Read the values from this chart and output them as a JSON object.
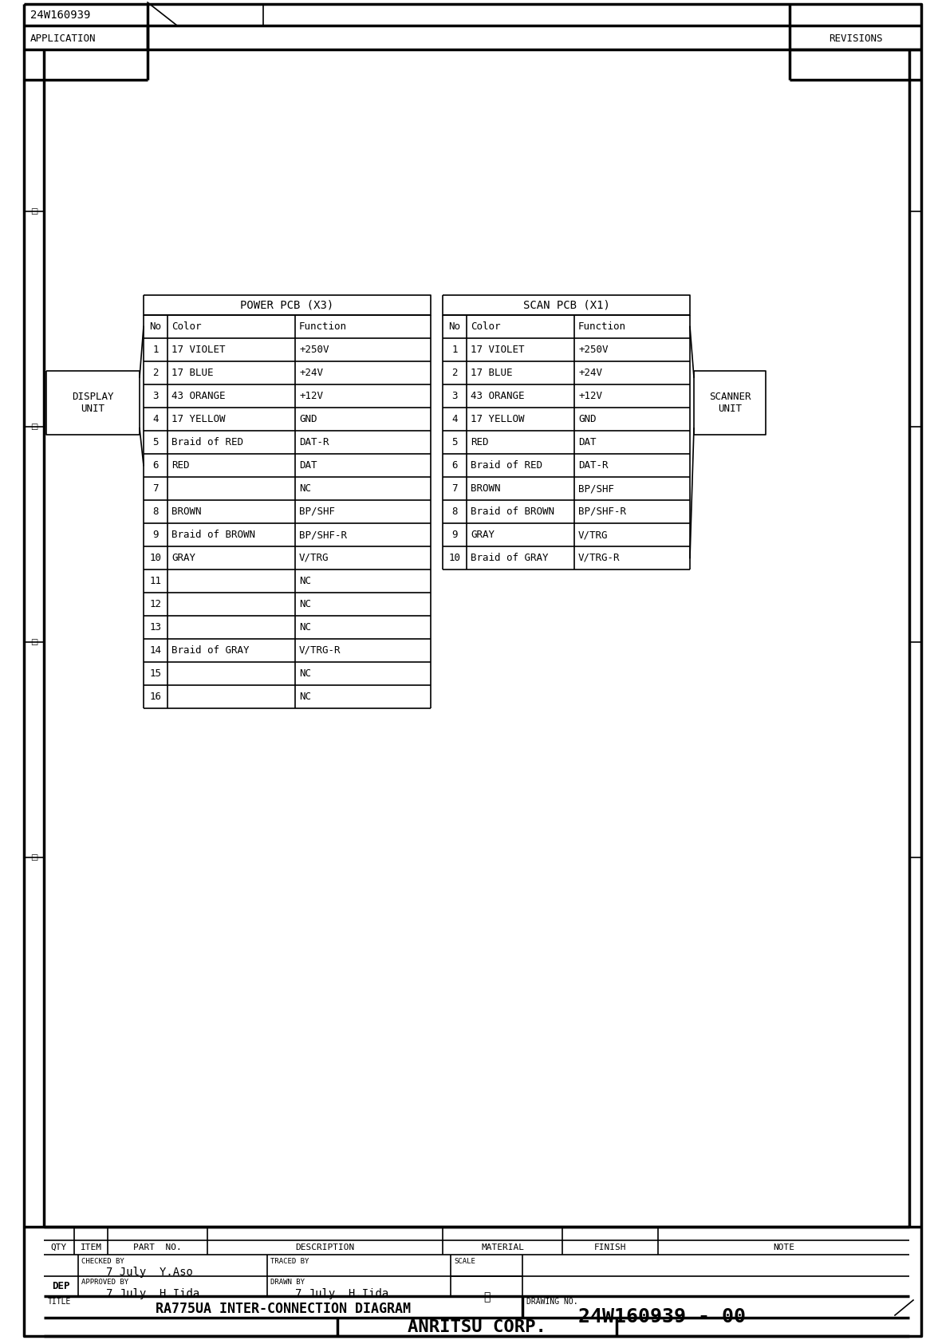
{
  "title": "RA775UA INTER-CONNECTION DIAGRAM",
  "drawing_no": "24W160939 - 00",
  "company": "ANRITSU CORP.",
  "dep_label": "DEP",
  "application": "APPLICATION",
  "revisions": "REVISIONS",
  "doc_no_header": "24W160939",
  "checked_by": "7 July  Y.Aso",
  "approved_by": "7 July  H.Iida",
  "drawn_by": "7 July  H.Iida",
  "scale_val": "基",
  "display_unit_label": "DISPLAY\nUNIT",
  "scanner_unit_label": "SCANNER\nUNIT",
  "power_pcb_title": "POWER PCB (X3)",
  "scan_pcb_title": "SCAN PCB (X1)",
  "power_pcb_rows": [
    [
      "No",
      "Color",
      "Function"
    ],
    [
      "1",
      "17 VIOLET",
      "+250V"
    ],
    [
      "2",
      "17 BLUE",
      "+24V"
    ],
    [
      "3",
      "43 ORANGE",
      "+12V"
    ],
    [
      "4",
      "17 YELLOW",
      "GND"
    ],
    [
      "5",
      "Braid of RED",
      "DAT-R"
    ],
    [
      "6",
      "RED",
      "DAT"
    ],
    [
      "7",
      "",
      "NC"
    ],
    [
      "8",
      "BROWN",
      "BP/SHF"
    ],
    [
      "9",
      "Braid of BROWN",
      "BP/SHF-R"
    ],
    [
      "10",
      "GRAY",
      "V/TRG"
    ],
    [
      "11",
      "",
      "NC"
    ],
    [
      "12",
      "",
      "NC"
    ],
    [
      "13",
      "",
      "NC"
    ],
    [
      "14",
      "Braid of GRAY",
      "V/TRG-R"
    ],
    [
      "15",
      "",
      "NC"
    ],
    [
      "16",
      "",
      "NC"
    ]
  ],
  "scan_pcb_rows": [
    [
      "No",
      "Color",
      "Function"
    ],
    [
      "1",
      "17 VIOLET",
      "+250V"
    ],
    [
      "2",
      "17 BLUE",
      "+24V"
    ],
    [
      "3",
      "43 ORANGE",
      "+12V"
    ],
    [
      "4",
      "17 YELLOW",
      "GND"
    ],
    [
      "5",
      "RED",
      "DAT"
    ],
    [
      "6",
      "Braid of RED",
      "DAT-R"
    ],
    [
      "7",
      "BROWN",
      "BP/SHF"
    ],
    [
      "8",
      "Braid of BROWN",
      "BP/SHF-R"
    ],
    [
      "9",
      "GRAY",
      "V/TRG"
    ],
    [
      "10",
      "Braid of GRAY",
      "V/TRG-R"
    ]
  ],
  "bg_color": "#ffffff"
}
